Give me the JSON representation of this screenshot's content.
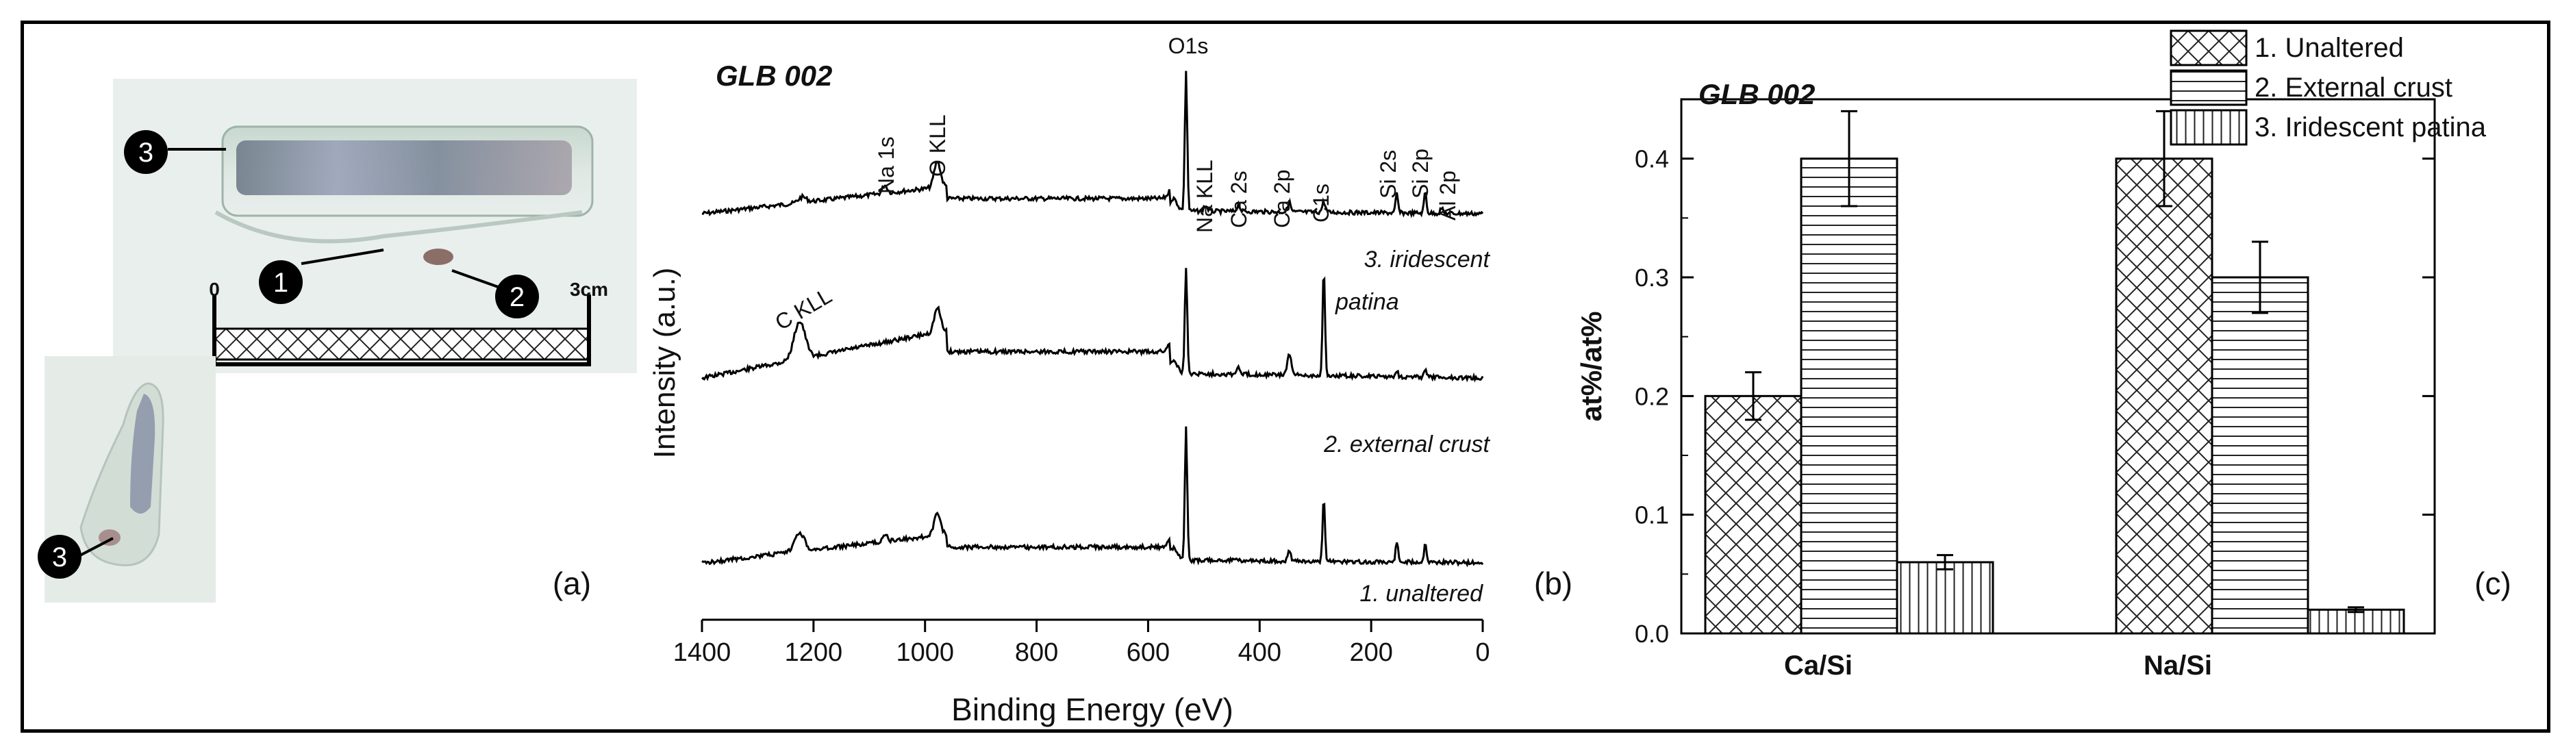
{
  "panel_a": {
    "label": "(a)",
    "callouts": [
      "3",
      "1",
      "2",
      "3"
    ],
    "scale_start": "0",
    "scale_end": "3cm"
  },
  "panel_b": {
    "label": "(b)",
    "title": "GLB 002",
    "xlabel": "Binding Energy (eV)",
    "ylabel": "Intensity (a.u.)",
    "xticks": [
      1400,
      1200,
      1000,
      800,
      600,
      400,
      200,
      0
    ],
    "xlim": [
      1400,
      0
    ],
    "spectra_labels": [
      "3. iridescent",
      "patina",
      "2. external crust",
      "1. unaltered"
    ],
    "peak_labels": {
      "o1s": "O1s",
      "na1s": "Na 1s",
      "oKLL": "O KLL",
      "naKLL": "Na KLL",
      "ca2s": "Ca 2s",
      "ca2p": "Ca 2p",
      "c1s": "C1s",
      "si2s": "Si 2s",
      "si2p": "Si 2p",
      "al2p": "Al 2p",
      "cKLL": "C KLL"
    }
  },
  "chart_data": {
    "type": "bar",
    "title": "GLB 002",
    "panel_label": "(c)",
    "categories": [
      "Ca/Si",
      "Na/Si"
    ],
    "series": [
      {
        "name": "1. Unaltered",
        "values": [
          0.2,
          0.4
        ],
        "errors": [
          0.02,
          0.04
        ],
        "pattern": "crosshatch"
      },
      {
        "name": "2. External crust",
        "values": [
          0.4,
          0.3
        ],
        "errors": [
          0.04,
          0.03
        ],
        "pattern": "horizontal"
      },
      {
        "name": "3. Iridescent patina",
        "values": [
          0.06,
          0.02
        ],
        "errors": [
          0.006,
          0.002
        ],
        "pattern": "vertical"
      }
    ],
    "ylabel": "at%/at%",
    "xlabel": "",
    "ylim": [
      0,
      0.45
    ],
    "yticks": [
      0.0,
      0.1,
      0.2,
      0.3,
      0.4
    ],
    "ytick_labels": [
      "0.0",
      "0.1",
      "0.2",
      "0.3",
      "0.4"
    ]
  }
}
